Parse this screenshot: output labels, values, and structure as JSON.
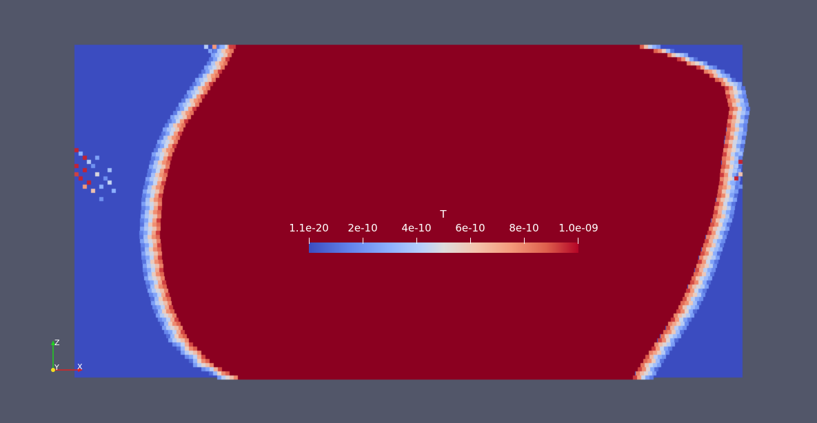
{
  "colors": {
    "background": "#525669",
    "domain_low": "#3b4cc0",
    "domain_high": "#8b0020",
    "accent_white": "#ffffff"
  },
  "colorbar": {
    "title": "T",
    "ticks": [
      "1.1e-20",
      "2e-10",
      "4e-10",
      "6e-10",
      "8e-10",
      "1.0e-09"
    ],
    "colormap": "Cool to Warm"
  },
  "orientation_axes": {
    "z_label": "Z",
    "y_label": "Y",
    "x_label": "X"
  }
}
